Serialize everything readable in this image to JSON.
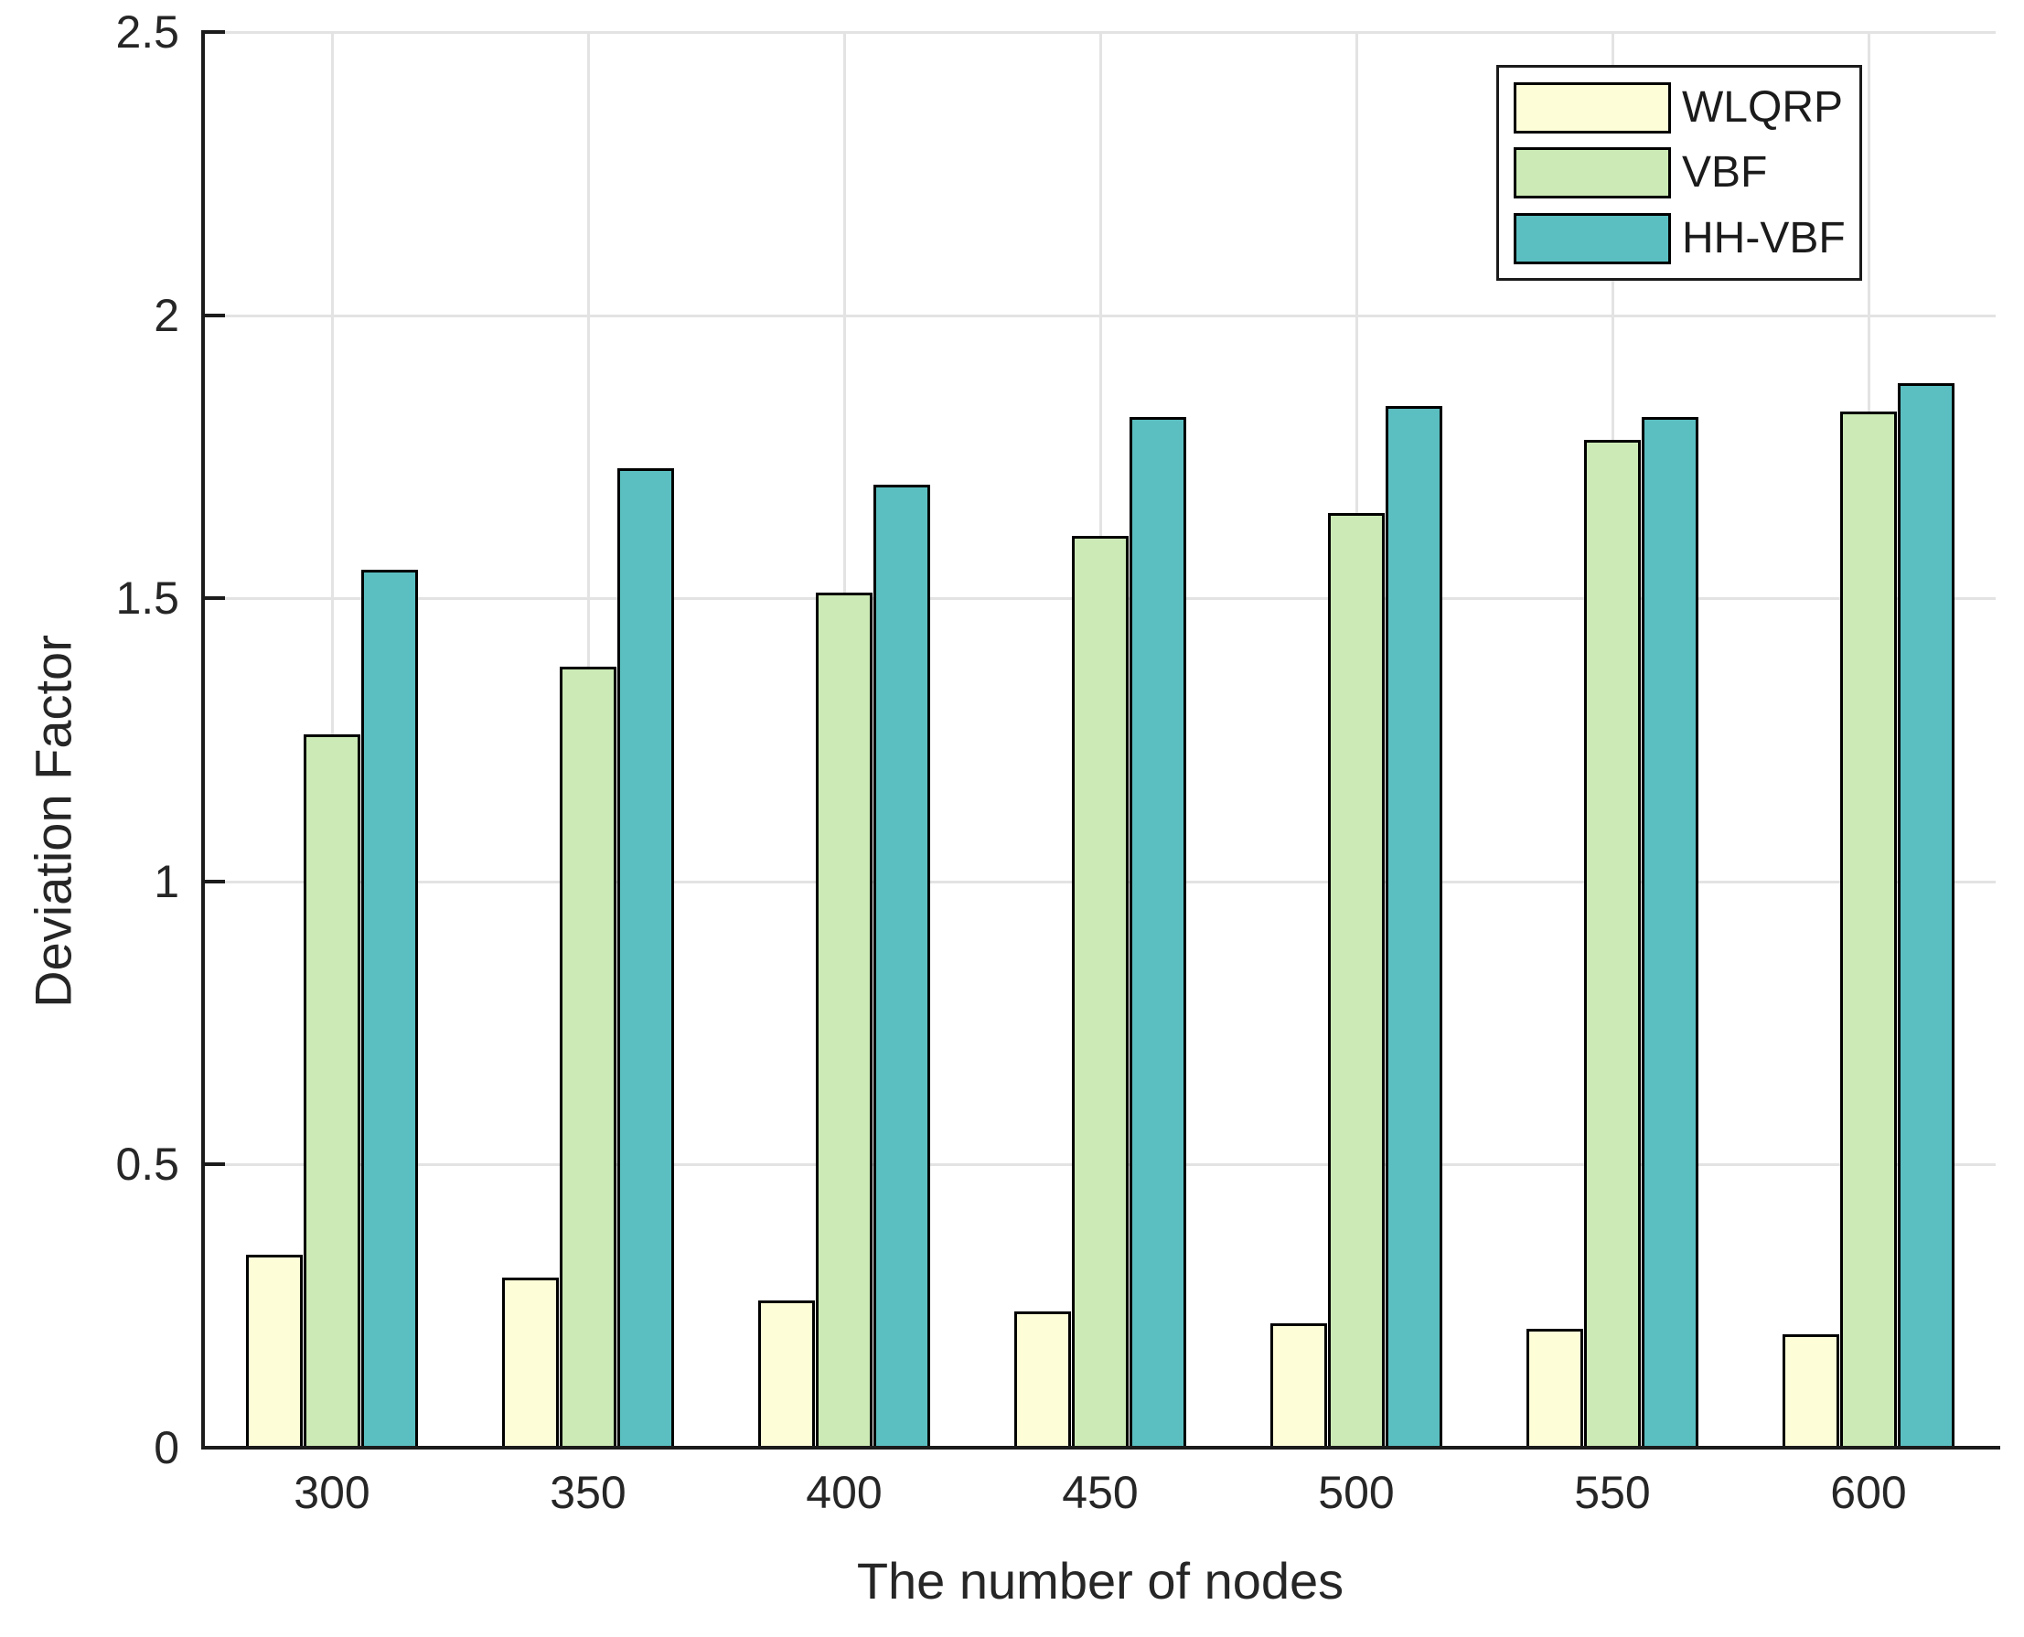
{
  "chart_data": {
    "type": "bar",
    "title": "",
    "xlabel": "The number of nodes",
    "ylabel": "Deviation Factor",
    "categories": [
      "300",
      "350",
      "400",
      "450",
      "500",
      "550",
      "600"
    ],
    "series": [
      {
        "name": "WLQRP",
        "color": "#FDFDD8",
        "values": [
          0.34,
          0.3,
          0.26,
          0.24,
          0.22,
          0.21,
          0.2
        ]
      },
      {
        "name": "VBF",
        "color": "#CBEAB5",
        "values": [
          1.26,
          1.38,
          1.51,
          1.61,
          1.65,
          1.78,
          1.83
        ]
      },
      {
        "name": "HH-VBF",
        "color": "#5BBFC1",
        "values": [
          1.55,
          1.73,
          1.7,
          1.82,
          1.84,
          1.82,
          1.88
        ]
      }
    ],
    "ylim": [
      0,
      2.5
    ],
    "yticks": [
      {
        "label": "0",
        "value": 0
      },
      {
        "label": "0.5",
        "value": 0.5
      },
      {
        "label": "1",
        "value": 1
      },
      {
        "label": "1.5",
        "value": 1.5
      },
      {
        "label": "2",
        "value": 2
      },
      {
        "label": "2.5",
        "value": 2.5
      }
    ],
    "grid": true,
    "legend_position": "top-right",
    "colors": {
      "axis": "#1b1b1b",
      "grid": "#e3e3e3",
      "bar_border": "#000000",
      "text": "#262626",
      "background": "#ffffff"
    }
  }
}
